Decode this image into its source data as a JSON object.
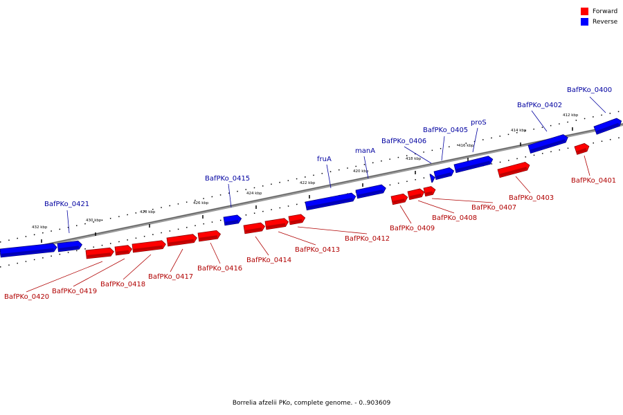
{
  "legend": {
    "forward": {
      "label": "Forward",
      "color": "#ff0000"
    },
    "reverse": {
      "label": "Reverse",
      "color": "#0000ff"
    }
  },
  "caption": "Borrelia afzelii PKo, complete genome. - 0..903609",
  "ticks": [
    "432 kbp",
    "430 kbp",
    "428 kbp",
    "426 kbp",
    "424 kbp",
    "422 kbp",
    "420 kbp",
    "418 kbp",
    "416 kbp",
    "414 kbp",
    "412 kbp"
  ],
  "reverse_genes": [
    "BafPKo_0400",
    "BafPKo_0402",
    "proS",
    "BafPKo_0405",
    "BafPKo_0406",
    "manA",
    "fruA",
    "BafPKo_0415",
    "BafPKo_0421"
  ],
  "forward_genes": [
    "BafPKo_0401",
    "BafPKo_0403",
    "BafPKo_0407",
    "BafPKo_0408",
    "BafPKo_0409",
    "BafPKo_0412",
    "BafPKo_0413",
    "BafPKo_0414",
    "BafPKo_0416",
    "BafPKo_0417",
    "BafPKo_0418",
    "BafPKo_0419",
    "BafPKo_0420"
  ]
}
